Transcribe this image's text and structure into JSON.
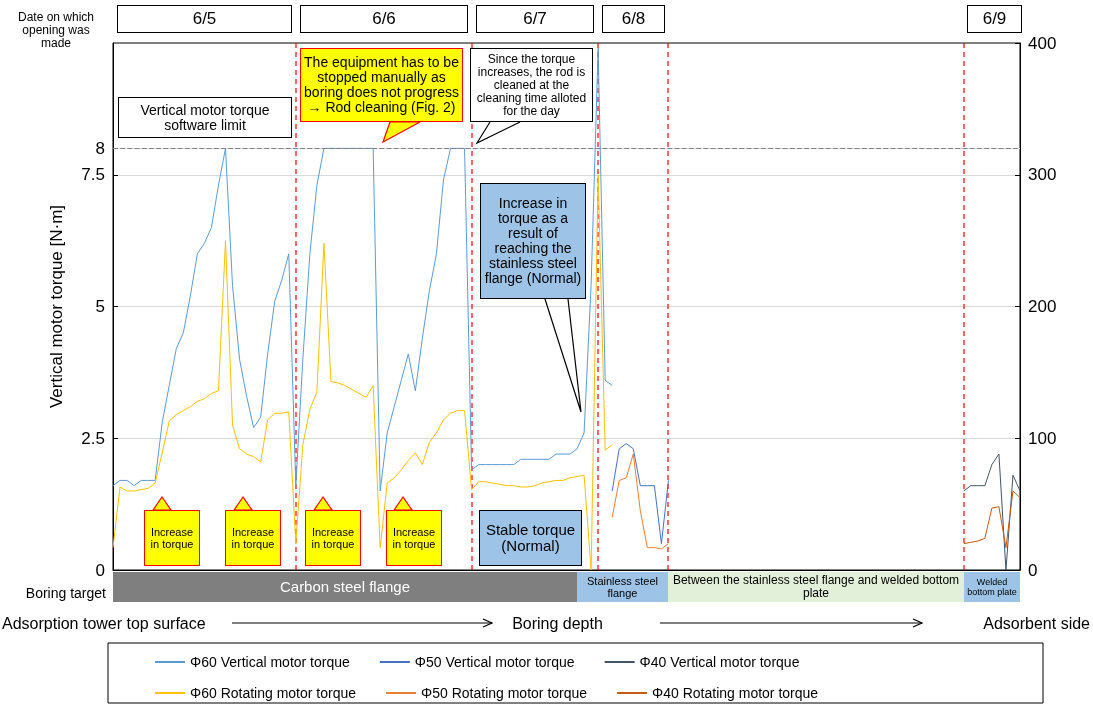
{
  "chart_data": {
    "type": "line",
    "ylabel": "Vertical motor torque [N·m]",
    "categories": [
      null,
      null,
      null,
      null,
      null,
      null,
      null,
      null,
      null,
      null,
      null,
      null,
      null,
      null,
      null,
      null,
      null,
      null,
      null,
      null,
      null,
      null,
      null,
      null,
      null,
      null,
      null,
      null,
      null,
      null,
      null,
      null,
      null,
      null,
      null,
      null,
      null,
      null,
      null,
      null,
      null,
      null,
      null,
      null,
      null,
      null,
      null,
      null,
      null,
      null,
      null,
      null,
      null,
      null,
      null,
      null,
      null,
      null,
      null,
      null,
      null,
      null,
      null,
      null,
      null,
      null,
      null,
      null,
      null,
      null,
      null,
      null,
      null,
      null,
      null,
      null,
      null,
      null,
      null,
      null,
      null,
      null,
      null,
      null,
      null,
      null,
      null,
      null,
      null,
      null,
      null,
      null,
      null,
      null,
      null,
      null,
      null,
      null,
      null,
      null,
      null,
      null,
      null,
      null,
      null,
      null,
      null,
      null,
      null,
      null,
      null,
      null,
      null,
      null,
      null,
      null,
      null,
      null,
      null,
      null,
      null,
      null,
      null,
      null,
      null,
      null,
      null,
      null,
      null,
      null
    ],
    "series": [
      {
        "name": "Φ60 Vertical motor torque",
        "color": "#5b9bd5",
        "values": [
          1.6,
          1.7,
          1.7,
          1.6,
          1.7,
          1.7,
          1.7,
          2.8,
          3.5,
          4.2,
          4.5,
          5.2,
          6.0,
          6.2,
          6.5,
          7.3,
          8.0,
          5.4,
          4.0,
          3.3,
          2.7,
          2.9,
          4.1,
          5.1,
          5.5,
          6.0,
          1.6,
          4.0,
          6.0,
          7.3,
          8.0,
          8.0,
          8.0,
          8.0,
          8.0,
          8.0,
          8.0,
          8.0,
          1.5,
          2.6,
          3.1,
          3.6,
          4.1,
          3.4,
          4.4,
          5.3,
          6.0,
          7.4,
          8.0,
          8.0,
          8.0,
          1.9,
          2.0,
          2.0,
          2.0,
          2.0,
          2.0,
          2.0,
          2.1,
          2.1,
          2.1,
          2.1,
          2.1,
          2.2,
          2.2,
          2.2,
          2.3,
          2.6,
          5.4,
          9.9,
          3.6,
          3.5,
          null,
          null,
          null,
          null,
          null,
          null,
          null,
          null,
          null,
          null,
          null,
          null,
          null,
          null,
          null,
          null,
          null,
          null,
          null,
          null,
          null,
          null,
          null,
          null,
          null,
          null,
          null,
          null,
          null,
          null,
          null,
          null,
          null,
          null,
          null,
          null,
          null,
          null,
          null,
          null,
          null,
          null,
          null,
          null,
          null,
          null,
          null,
          null,
          null,
          null,
          null,
          null,
          null,
          null,
          null,
          null,
          null,
          null
        ]
      },
      {
        "name": "Φ50 Vertical motor torque",
        "color": "#4472c4",
        "values": [
          null,
          null,
          null,
          null,
          null,
          null,
          null,
          null,
          null,
          null,
          null,
          null,
          null,
          null,
          null,
          null,
          null,
          null,
          null,
          null,
          null,
          null,
          null,
          null,
          null,
          null,
          null,
          null,
          null,
          null,
          null,
          null,
          null,
          null,
          null,
          null,
          null,
          null,
          null,
          null,
          null,
          null,
          null,
          null,
          null,
          null,
          null,
          null,
          null,
          null,
          null,
          null,
          null,
          null,
          null,
          null,
          null,
          null,
          null,
          null,
          null,
          null,
          null,
          null,
          null,
          null,
          null,
          null,
          null,
          null,
          null,
          1.5,
          2.3,
          2.4,
          2.3,
          1.6,
          1.6,
          1.6,
          0.5,
          1.7,
          null,
          null,
          null,
          null,
          null,
          null,
          null,
          null,
          null,
          null,
          null,
          null,
          null,
          null,
          null,
          null,
          null,
          null,
          null,
          null,
          null,
          null,
          null,
          null,
          null,
          null,
          null,
          null,
          null,
          null,
          null,
          null,
          null,
          null,
          null,
          null,
          null,
          null,
          null,
          null,
          null,
          null,
          null,
          null,
          null,
          null,
          null,
          null,
          null,
          null
        ]
      },
      {
        "name": "Φ40 Vertical motor torque",
        "color": "#44546a",
        "values": [
          null,
          null,
          null,
          null,
          null,
          null,
          null,
          null,
          null,
          null,
          null,
          null,
          null,
          null,
          null,
          null,
          null,
          null,
          null,
          null,
          null,
          null,
          null,
          null,
          null,
          null,
          null,
          null,
          null,
          null,
          null,
          null,
          null,
          null,
          null,
          null,
          null,
          null,
          null,
          null,
          null,
          null,
          null,
          null,
          null,
          null,
          null,
          null,
          null,
          null,
          null,
          null,
          null,
          null,
          null,
          null,
          null,
          null,
          null,
          null,
          null,
          null,
          null,
          null,
          null,
          null,
          null,
          null,
          null,
          null,
          null,
          null,
          null,
          null,
          null,
          null,
          null,
          null,
          null,
          null,
          null,
          null,
          null,
          null,
          null,
          null,
          null,
          null,
          null,
          null,
          null,
          null,
          null,
          null,
          null,
          null,
          null,
          null,
          null,
          null,
          null,
          null,
          null,
          null,
          null,
          null,
          null,
          null,
          null,
          null,
          null,
          null,
          null,
          null,
          null,
          null,
          null,
          null,
          null,
          null,
          null,
          1.5,
          1.6,
          1.6,
          1.6,
          2.0,
          2.2,
          0,
          1.8,
          1.5
        ]
      },
      {
        "name": "Φ60 Rotating motor torque",
        "color": "#ffc000",
        "axis": "y2",
        "values": [
          17,
          63,
          60,
          60,
          61,
          62,
          66,
          89,
          113,
          118,
          121,
          124,
          128,
          130,
          134,
          136,
          250,
          110,
          92,
          88,
          86,
          82,
          114,
          119,
          119,
          120,
          20,
          95,
          122,
          135,
          248,
          143,
          142,
          140,
          137,
          134,
          131,
          140,
          17,
          66,
          70,
          76,
          83,
          89,
          80,
          97,
          104,
          114,
          119,
          121,
          121,
          61,
          67,
          67,
          66,
          65,
          64,
          64,
          63,
          63,
          64,
          66,
          67,
          68,
          68,
          70,
          71,
          72,
          0,
          300,
          91,
          95,
          null,
          null,
          null,
          null,
          null,
          null,
          null,
          null,
          null,
          null,
          null,
          null,
          null,
          null,
          null,
          null,
          null,
          null,
          null,
          null,
          null,
          null,
          null,
          null,
          null,
          null,
          null,
          null,
          null,
          null,
          null,
          null,
          null,
          null,
          null,
          null,
          null,
          null,
          null,
          null,
          null,
          null,
          null,
          null,
          null,
          null,
          null,
          null,
          null,
          null,
          null,
          null,
          null,
          null,
          null,
          null,
          null,
          null
        ]
      },
      {
        "name": "Φ50 Rotating motor torque",
        "color": "#ed7d31",
        "axis": "y2",
        "values": [
          null,
          null,
          null,
          null,
          null,
          null,
          null,
          null,
          null,
          null,
          null,
          null,
          null,
          null,
          null,
          null,
          null,
          null,
          null,
          null,
          null,
          null,
          null,
          null,
          null,
          null,
          null,
          null,
          null,
          null,
          null,
          null,
          null,
          null,
          null,
          null,
          null,
          null,
          null,
          null,
          null,
          null,
          null,
          null,
          null,
          null,
          null,
          null,
          null,
          null,
          null,
          null,
          null,
          null,
          null,
          null,
          null,
          null,
          null,
          null,
          null,
          null,
          null,
          null,
          null,
          null,
          null,
          null,
          null,
          null,
          null,
          40,
          68,
          70,
          88,
          45,
          17,
          17,
          16,
          20,
          null,
          null,
          null,
          null,
          null,
          null,
          null,
          null,
          null,
          null,
          null,
          null,
          null,
          null,
          null,
          null,
          null,
          null,
          null,
          null,
          null,
          null,
          null,
          null,
          null,
          null,
          null,
          null,
          null,
          null,
          null,
          null,
          null,
          null,
          null,
          null,
          null,
          null,
          null,
          null,
          null,
          null,
          null,
          null,
          null,
          null,
          null,
          null,
          null,
          null
        ]
      },
      {
        "name": "Φ40 Rotating motor torque",
        "color": "#c55a11",
        "axis": "y2",
        "values": [
          null,
          null,
          null,
          null,
          null,
          null,
          null,
          null,
          null,
          null,
          null,
          null,
          null,
          null,
          null,
          null,
          null,
          null,
          null,
          null,
          null,
          null,
          null,
          null,
          null,
          null,
          null,
          null,
          null,
          null,
          null,
          null,
          null,
          null,
          null,
          null,
          null,
          null,
          null,
          null,
          null,
          null,
          null,
          null,
          null,
          null,
          null,
          null,
          null,
          null,
          null,
          null,
          null,
          null,
          null,
          null,
          null,
          null,
          null,
          null,
          null,
          null,
          null,
          null,
          null,
          null,
          null,
          null,
          null,
          null,
          null,
          null,
          null,
          null,
          null,
          null,
          null,
          null,
          null,
          null,
          null,
          null,
          null,
          null,
          null,
          null,
          null,
          null,
          null,
          null,
          null,
          null,
          null,
          null,
          null,
          null,
          null,
          null,
          null,
          null,
          null,
          null,
          null,
          null,
          null,
          null,
          null,
          null,
          null,
          null,
          null,
          null,
          null,
          null,
          null,
          null,
          null,
          null,
          null,
          null,
          null,
          20,
          21,
          22,
          24,
          47,
          48,
          17,
          60,
          55
        ]
      }
    ],
    "ylim": [
      0,
      10
    ],
    "yticks": [
      0,
      2.5,
      5,
      7.5,
      8
    ],
    "y2lim": [
      0,
      400
    ],
    "y2ticks": [
      0,
      100,
      200,
      300,
      400
    ],
    "ref_lines": [
      {
        "axis": "y",
        "value": 8,
        "color": "#808080",
        "line_style": "dashed"
      }
    ],
    "annotations": [
      "Date on which opening was made",
      "6/5",
      "6/6",
      "6/7",
      "6/8",
      "6/9",
      "Carbon steel flange",
      "Stainless steel flange",
      "Between the stainless steel flange and welded bottom plate",
      "Welded bottom plate",
      "Boring target",
      "Adsorption tower top surface",
      "Boring depth",
      "Adsorbent side",
      "Vertical motor torque software limit",
      "The equipment has to be stopped manually as boring does not progress → Rod cleaning (Fig. 2)",
      "Since the torque increases, the rod is cleaned at the cleaning time alloted for the day",
      "Increase in torque as a result of reaching the stainless steel flange (Normal)",
      "Stable torque (Normal)",
      "Increase in torque",
      "Increase in torque",
      "Increase in torque",
      "Increase in torque"
    ],
    "grid": "y",
    "legend": "bottom",
    "marker": "none",
    "tick_labels": "y"
  }
}
